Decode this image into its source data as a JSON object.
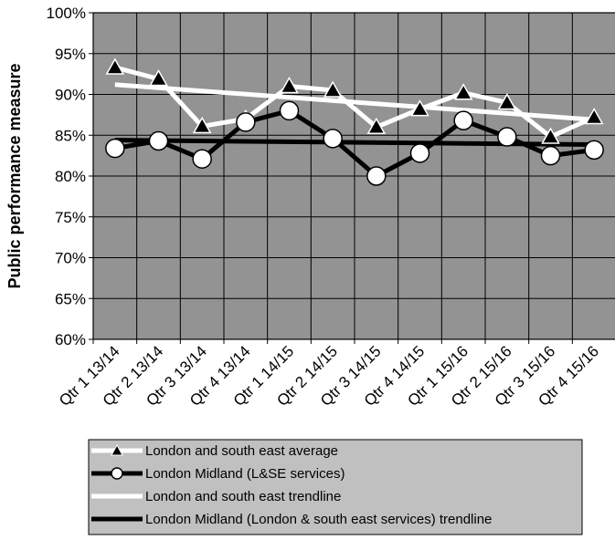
{
  "chart_data": {
    "type": "line",
    "title": "",
    "xlabel": "",
    "ylabel": "Public performance measure",
    "categories": [
      "Qtr 1 13/14",
      "Qtr 2 13/14",
      "Qtr 3 13/14",
      "Qtr 4 13/14",
      "Qtr 1 14/15",
      "Qtr 2 14/15",
      "Qtr 3 14/15",
      "Qtr 4 14/15",
      "Qtr 1 15/16",
      "Qtr 2 15/16",
      "Qtr 3 15/16",
      "Qtr 4 15/16"
    ],
    "ylim": [
      60,
      100
    ],
    "yticks": [
      "60%",
      "65%",
      "70%",
      "75%",
      "80%",
      "85%",
      "90%",
      "95%",
      "100%"
    ],
    "grid": true,
    "legend_position": "bottom",
    "series": [
      {
        "name": "London and south east average",
        "marker": "triangle",
        "color": "#ffffff",
        "values": [
          93.3,
          91.9,
          86.1,
          87.0,
          91.0,
          90.5,
          86.0,
          88.2,
          90.2,
          89.0,
          84.8,
          87.2
        ]
      },
      {
        "name": "London Midland (L&SE services)",
        "marker": "circle",
        "color": "#000000",
        "values": [
          83.4,
          84.3,
          82.1,
          86.6,
          88.0,
          84.6,
          80.0,
          82.8,
          86.8,
          84.8,
          82.5,
          83.2
        ]
      },
      {
        "name": "London and south east trendline",
        "marker": "none",
        "color": "#ffffff",
        "values": [
          91.2,
          90.8,
          90.4,
          90.0,
          89.6,
          89.3,
          88.9,
          88.5,
          88.1,
          87.7,
          87.3,
          86.9
        ]
      },
      {
        "name": "London Midland (London & south east services) trendline",
        "marker": "none",
        "color": "#000000",
        "values": [
          84.4,
          84.35,
          84.3,
          84.25,
          84.2,
          84.15,
          84.1,
          84.05,
          84.0,
          83.95,
          83.9,
          83.85
        ]
      }
    ],
    "colors": {
      "plot_bg": "#939393",
      "legend_bg": "#c0c0c0",
      "grid": "#000000"
    }
  }
}
